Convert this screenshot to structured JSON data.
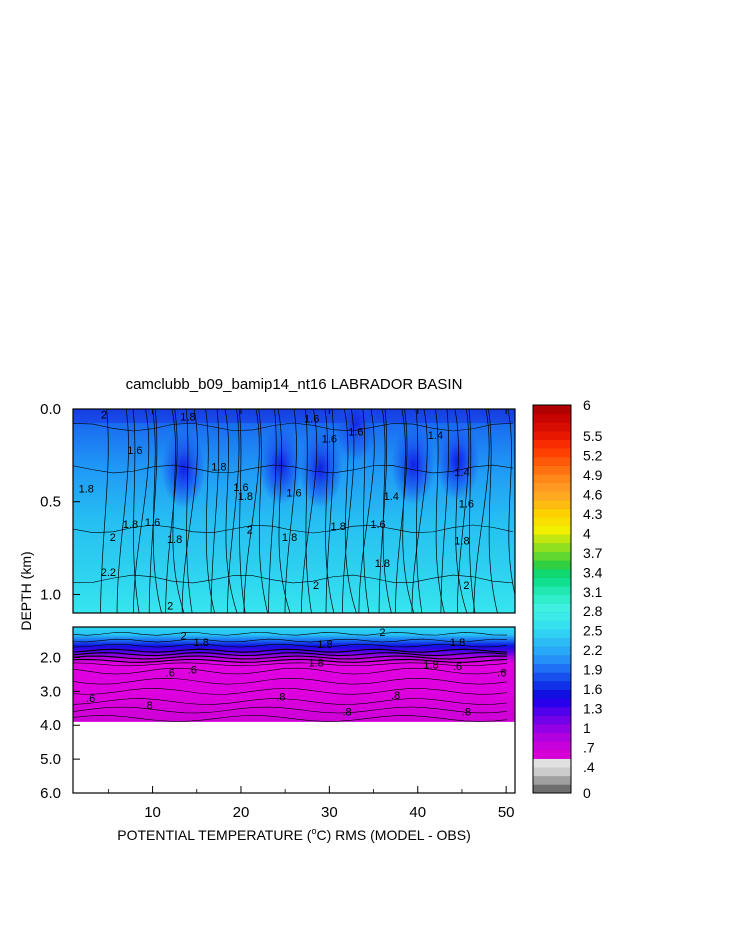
{
  "chart_data": {
    "type": "heatmap",
    "title": "camclubb_b09_bamip14_nt16 LABRADOR BASIN",
    "xlabel_prefix": "POTENTIAL TEMPERATURE (",
    "xlabel_unit_sup": "o",
    "xlabel_suffix": "C) RMS (MODEL - OBS)",
    "ylabel": "DEPTH (km)",
    "x_range": [
      1,
      51
    ],
    "x_ticks": [
      "10",
      "20",
      "30",
      "40",
      "50"
    ],
    "x_tick_values": [
      10,
      20,
      30,
      40,
      50
    ],
    "upper_panel": {
      "depth_range": [
        0.0,
        1.1
      ],
      "y_ticks": [
        "0.0",
        "0.5",
        "1.0"
      ],
      "y_tick_values": [
        0.0,
        0.5,
        1.0
      ]
    },
    "lower_panel": {
      "depth_range": [
        1.1,
        6.0
      ],
      "data_bottom": 3.9,
      "y_ticks": [
        "2.0",
        "3.0",
        "4.0",
        "5.0",
        "6.0"
      ],
      "y_tick_values": [
        2.0,
        3.0,
        4.0,
        5.0,
        6.0
      ]
    },
    "colorbar": {
      "labels": [
        "0",
        ".4",
        ".7",
        "1",
        "1.3",
        "1.6",
        "1.9",
        "2.2",
        "2.5",
        "2.8",
        "3.1",
        "3.4",
        "3.7",
        "4",
        "4.3",
        "4.6",
        "4.9",
        "5.2",
        "5.5",
        "6"
      ],
      "min": 0,
      "max": 6,
      "colors": [
        "#6e6e6e",
        "#a0a0a0",
        "#cccccc",
        "#e0e0e0",
        "#d600d6",
        "#c800dc",
        "#b000e0",
        "#9400e6",
        "#7200e8",
        "#5000ea",
        "#2800ec",
        "#1010e0",
        "#1030ea",
        "#1850f0",
        "#2070f5",
        "#2490f8",
        "#28a8f8",
        "#2cbcf5",
        "#30d0f2",
        "#36e0ee",
        "#3ceaea",
        "#40f0e0",
        "#30eecc",
        "#20e8b0",
        "#10e090",
        "#10d870",
        "#30d040",
        "#60d830",
        "#90e020",
        "#c0e810",
        "#f0f000",
        "#f8e000",
        "#ffd000",
        "#ffbc10",
        "#ffa820",
        "#ff9820",
        "#ff8818",
        "#ff7010",
        "#ff5808",
        "#ff4000",
        "#f82c00",
        "#e81800",
        "#d80c00",
        "#c80400",
        "#b00000"
      ]
    },
    "contour_labels_upper": [
      {
        "text": "2",
        "x": 4.5,
        "depth": 0.03
      },
      {
        "text": "1.8",
        "x": 14.0,
        "depth": 0.04
      },
      {
        "text": "1.6",
        "x": 28.0,
        "depth": 0.05
      },
      {
        "text": "1.6",
        "x": 8.0,
        "depth": 0.22
      },
      {
        "text": "1.8",
        "x": 17.5,
        "depth": 0.31
      },
      {
        "text": "1.6",
        "x": 20.0,
        "depth": 0.42
      },
      {
        "text": "1.8",
        "x": 20.5,
        "depth": 0.47
      },
      {
        "text": "1.6",
        "x": 30.0,
        "depth": 0.16
      },
      {
        "text": "1.6",
        "x": 33.0,
        "depth": 0.12
      },
      {
        "text": "1.4",
        "x": 42.0,
        "depth": 0.14
      },
      {
        "text": "1.4",
        "x": 45.0,
        "depth": 0.34
      },
      {
        "text": "1.4",
        "x": 37.0,
        "depth": 0.47
      },
      {
        "text": "1.6",
        "x": 26.0,
        "depth": 0.45
      },
      {
        "text": "1.6",
        "x": 45.5,
        "depth": 0.51
      },
      {
        "text": "1.8",
        "x": 2.5,
        "depth": 0.43
      },
      {
        "text": "1.8",
        "x": 7.5,
        "depth": 0.62
      },
      {
        "text": "1.6",
        "x": 10.0,
        "depth": 0.61
      },
      {
        "text": "1.8",
        "x": 12.5,
        "depth": 0.7
      },
      {
        "text": "2",
        "x": 5.5,
        "depth": 0.69
      },
      {
        "text": "1.8",
        "x": 25.5,
        "depth": 0.69
      },
      {
        "text": "1.8",
        "x": 31.0,
        "depth": 0.63
      },
      {
        "text": "1.6",
        "x": 35.5,
        "depth": 0.62
      },
      {
        "text": "1.8",
        "x": 36.0,
        "depth": 0.83
      },
      {
        "text": "1.8",
        "x": 45.0,
        "depth": 0.71
      },
      {
        "text": "2",
        "x": 21.0,
        "depth": 0.65
      },
      {
        "text": "2",
        "x": 28.5,
        "depth": 0.95
      },
      {
        "text": "2",
        "x": 12.0,
        "depth": 1.06
      },
      {
        "text": "2.2",
        "x": 5.0,
        "depth": 0.88
      },
      {
        "text": "2",
        "x": 45.5,
        "depth": 0.95
      }
    ],
    "contour_labels_lower": [
      {
        "text": "2",
        "x": 13.5,
        "depth": 1.35
      },
      {
        "text": "1.8",
        "x": 15.5,
        "depth": 1.55
      },
      {
        "text": "1.8",
        "x": 29.5,
        "depth": 1.6
      },
      {
        "text": "1.8",
        "x": 28.5,
        "depth": 2.15
      },
      {
        "text": "1.8",
        "x": 44.5,
        "depth": 1.55
      },
      {
        "text": "1.8",
        "x": 41.5,
        "depth": 2.2
      },
      {
        "text": "2",
        "x": 36.0,
        "depth": 1.25
      },
      {
        "text": ".6",
        "x": 12.0,
        "depth": 2.45
      },
      {
        "text": ".6",
        "x": 14.5,
        "depth": 2.35
      },
      {
        "text": ".6",
        "x": 3.0,
        "depth": 3.2
      },
      {
        "text": ".8",
        "x": 9.5,
        "depth": 3.4
      },
      {
        "text": ".8",
        "x": 24.5,
        "depth": 3.15
      },
      {
        "text": ".8",
        "x": 37.5,
        "depth": 3.1
      },
      {
        "text": ".8",
        "x": 32.0,
        "depth": 3.6
      },
      {
        "text": ".8",
        "x": 45.5,
        "depth": 3.6
      },
      {
        "text": ".6",
        "x": 44.5,
        "depth": 2.25
      },
      {
        "text": ".6",
        "x": 49.5,
        "depth": 2.45
      }
    ]
  }
}
